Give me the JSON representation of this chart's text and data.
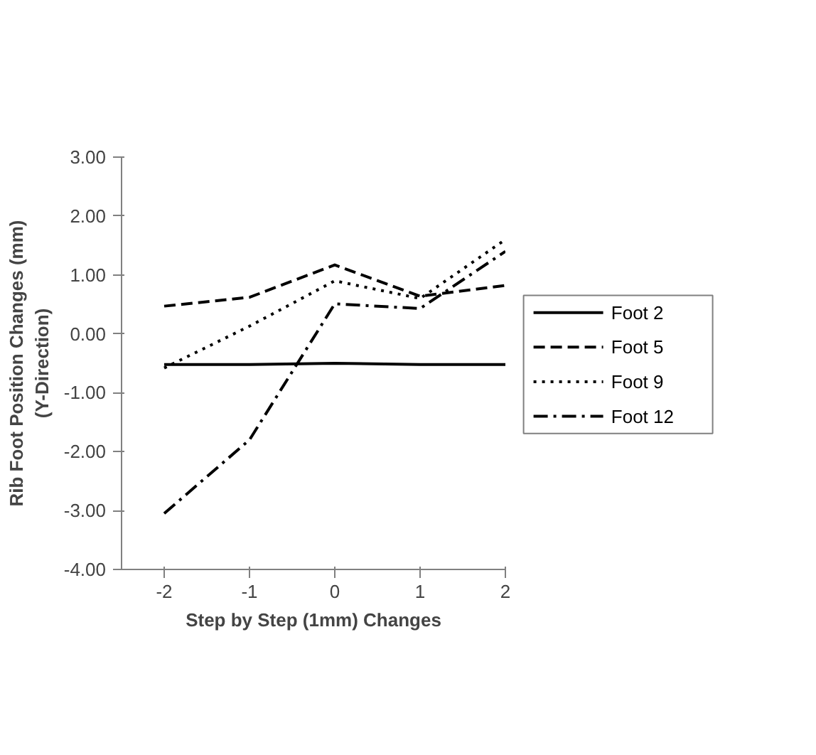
{
  "chart_data": {
    "type": "line",
    "ylabel": "Rib Foot Position Changes (mm)\n(Y-Direction)",
    "xlabel": "Step by Step (1mm) Changes",
    "x": [
      -2,
      -1,
      0,
      1,
      2
    ],
    "xlim": [
      -2.5,
      2
    ],
    "xticks": [
      -2,
      -1,
      0,
      1,
      2
    ],
    "ylim": [
      -4,
      3
    ],
    "yticks": [
      {
        "value": -4,
        "label": "-4.00"
      },
      {
        "value": -3,
        "label": "-3.00"
      },
      {
        "value": -2,
        "label": "-2.00"
      },
      {
        "value": -1,
        "label": "-1.00"
      },
      {
        "value": 0,
        "label": "0.00"
      },
      {
        "value": 1,
        "label": "1.00"
      },
      {
        "value": 2,
        "label": "2.00"
      },
      {
        "value": 3,
        "label": "3.00"
      }
    ],
    "grid": false,
    "legend": "right",
    "marker": "none",
    "series": [
      {
        "name": "Foot 2",
        "color": "#000000",
        "line_style": "solid",
        "values": [
          -0.52,
          -0.52,
          -0.5,
          -0.52,
          -0.52
        ]
      },
      {
        "name": "Foot 5",
        "color": "#000000",
        "line_style": "dashed",
        "values": [
          0.47,
          0.62,
          1.17,
          0.64,
          0.82
        ]
      },
      {
        "name": "Foot 9",
        "color": "#000000",
        "line_style": "dotted",
        "values": [
          -0.58,
          0.13,
          0.9,
          0.6,
          1.6
        ]
      },
      {
        "name": "Foot 12",
        "color": "#000000",
        "line_style": "dashdot",
        "values": [
          -3.05,
          -1.8,
          0.51,
          0.43,
          1.4
        ]
      }
    ]
  }
}
